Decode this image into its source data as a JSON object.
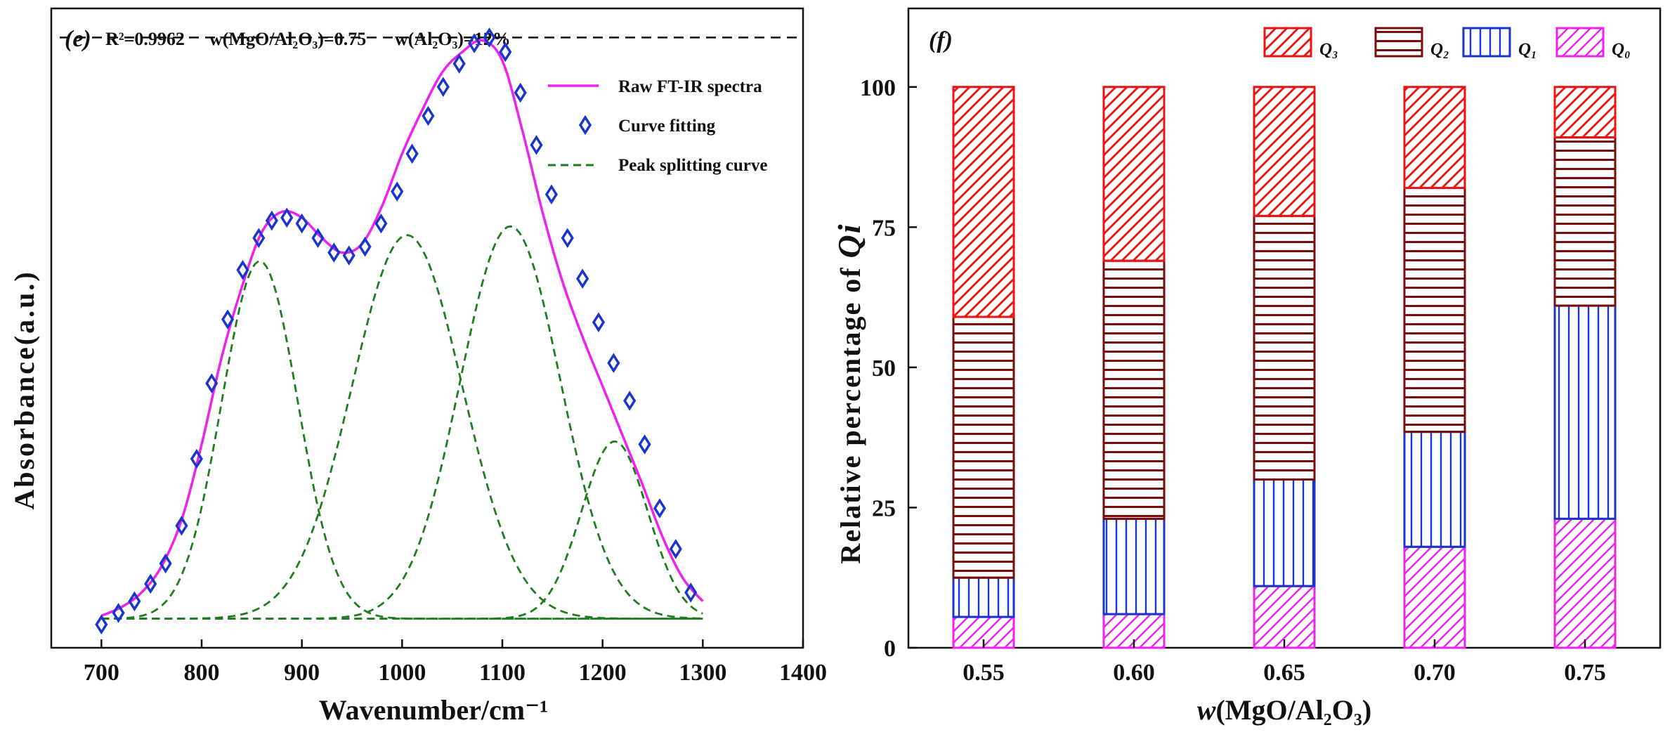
{
  "chart_data": [
    {
      "panel": "(e)",
      "type": "line",
      "annotation": {
        "r2": "R²=0.9962",
        "ratio_label": "w(MgO/Al₂O₃)=0.75",
        "alumina_label": "w(Al₂O₃)=12%"
      },
      "xlabel": "Wavenumber/cm⁻¹",
      "ylabel": "Absorbance(a.u.)",
      "xlim": [
        650,
        1400
      ],
      "ylim": [
        -0.05,
        1.05
      ],
      "x_ticks": [
        "700",
        "800",
        "900",
        "1000",
        "1100",
        "1200",
        "1300",
        "1400"
      ],
      "x_tick_values": [
        700,
        800,
        900,
        1000,
        1100,
        1200,
        1300,
        1400
      ],
      "dashed_reference_y": 1.0,
      "legend": {
        "placement": "top-right",
        "raw": "Raw FT-IR spectra",
        "fit": "Curve fitting",
        "peak": "Peak splitting curve"
      },
      "colors": {
        "raw": "#ee22ee",
        "fit": "#1a35cc",
        "peak": "#1e7d1e",
        "reference": "#111111"
      },
      "baseline": 0.0,
      "peaks": [
        {
          "center": 858,
          "amplitude": 0.615,
          "sigma": 38
        },
        {
          "center": 1005,
          "amplitude": 0.66,
          "sigma": 55
        },
        {
          "center": 1108,
          "amplitude": 0.675,
          "sigma": 50
        },
        {
          "center": 1212,
          "amplitude": 0.305,
          "sigma": 33
        }
      ],
      "raw_curve_x": [
        700,
        720,
        740,
        760,
        780,
        800,
        820,
        840,
        860,
        880,
        900,
        920,
        940,
        960,
        980,
        1000,
        1020,
        1040,
        1060,
        1080,
        1100,
        1120,
        1140,
        1160,
        1180,
        1200,
        1220,
        1240,
        1260,
        1280,
        1300
      ],
      "raw_curve_y": [
        0.005,
        0.02,
        0.045,
        0.09,
        0.17,
        0.3,
        0.45,
        0.57,
        0.665,
        0.7,
        0.69,
        0.655,
        0.63,
        0.645,
        0.71,
        0.8,
        0.875,
        0.94,
        0.975,
        0.995,
        0.96,
        0.84,
        0.7,
        0.58,
        0.485,
        0.4,
        0.315,
        0.23,
        0.14,
        0.07,
        0.03
      ],
      "fit_points_x": [
        700,
        717,
        733,
        749,
        764,
        780,
        795,
        810,
        826,
        841,
        857,
        870,
        885,
        900,
        916,
        932,
        947,
        963,
        979,
        995,
        1010,
        1026,
        1041,
        1057,
        1072,
        1087,
        1103,
        1118,
        1134,
        1149,
        1165,
        1180,
        1196,
        1211,
        1227,
        1242,
        1257,
        1273,
        1288
      ],
      "fit_points_y": [
        -0.01,
        0.01,
        0.03,
        0.06,
        0.095,
        0.16,
        0.275,
        0.405,
        0.515,
        0.6,
        0.655,
        0.685,
        0.69,
        0.68,
        0.655,
        0.63,
        0.625,
        0.64,
        0.68,
        0.735,
        0.8,
        0.865,
        0.915,
        0.955,
        0.99,
        1.0,
        0.975,
        0.905,
        0.815,
        0.73,
        0.655,
        0.585,
        0.51,
        0.44,
        0.375,
        0.3,
        0.19,
        0.12,
        0.045
      ]
    },
    {
      "panel": "(f)",
      "type": "bar",
      "stacked": true,
      "xlabel": "w(MgO/Al₂O₃)",
      "ylabel": "Relative percentage of Qi",
      "categories": [
        "0.55",
        "0.60",
        "0.65",
        "0.70",
        "0.75"
      ],
      "ylim": [
        0,
        114
      ],
      "y_ticks": [
        "0",
        "25",
        "50",
        "75",
        "100"
      ],
      "y_tick_values": [
        0,
        25,
        50,
        75,
        100
      ],
      "legend_placement": "top",
      "series": [
        {
          "name": "Q₀",
          "key": "Q0",
          "color": "#ee22ee",
          "pattern": "diag",
          "values": [
            5.5,
            6,
            11,
            18,
            23
          ]
        },
        {
          "name": "Q₁",
          "key": "Q1",
          "color": "#1a35cc",
          "pattern": "vert",
          "values": [
            7,
            17,
            19,
            20.5,
            38
          ]
        },
        {
          "name": "Q₂",
          "key": "Q2",
          "color": "#7a0c0c",
          "pattern": "horz",
          "values": [
            46.5,
            46,
            47,
            43.5,
            30
          ]
        },
        {
          "name": "Q₃",
          "key": "Q3",
          "color": "#ee1111",
          "pattern": "diag",
          "values": [
            41,
            31,
            23,
            18,
            9
          ]
        }
      ],
      "legend_order": [
        "Q3",
        "Q2",
        "Q1",
        "Q0"
      ]
    }
  ]
}
